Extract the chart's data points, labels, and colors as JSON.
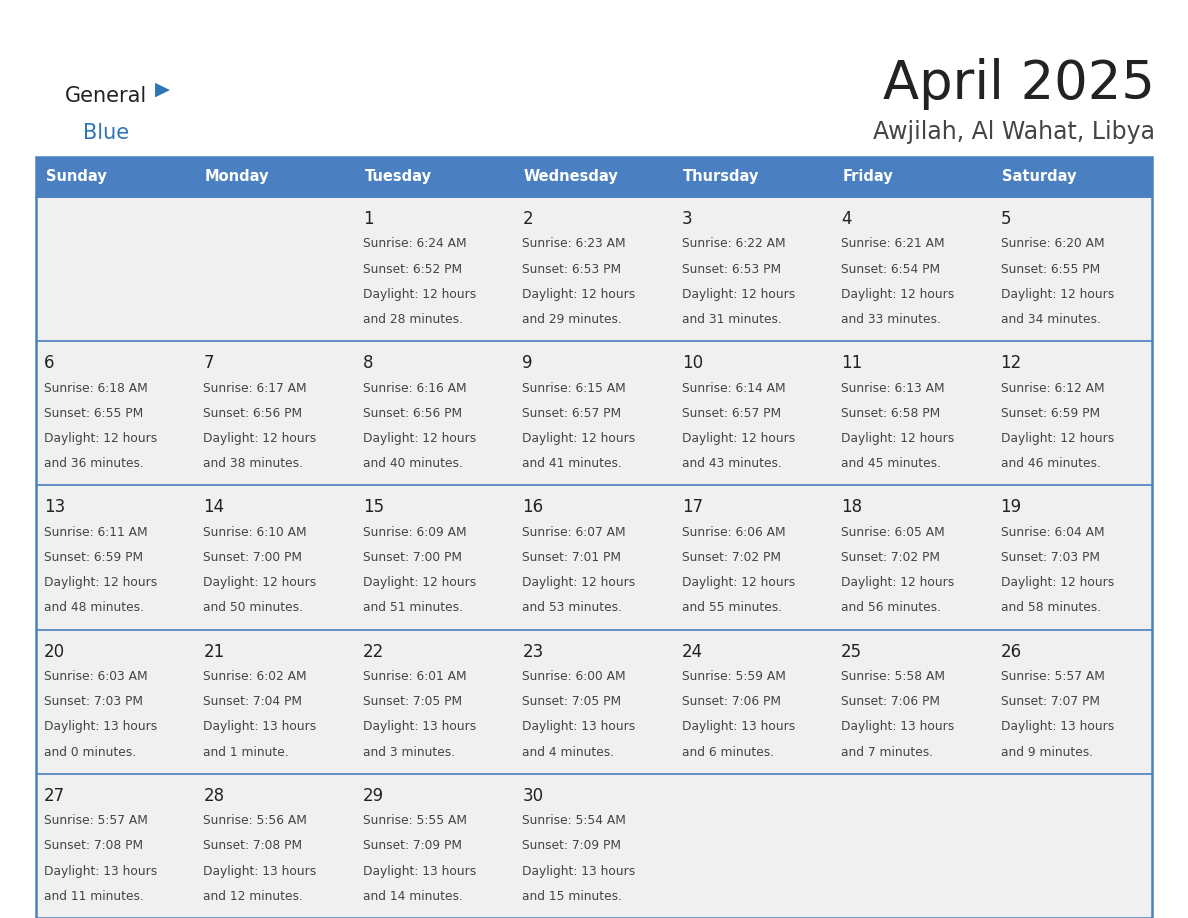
{
  "title": "April 2025",
  "subtitle": "Awjilah, Al Wahat, Libya",
  "days_of_week": [
    "Sunday",
    "Monday",
    "Tuesday",
    "Wednesday",
    "Thursday",
    "Friday",
    "Saturday"
  ],
  "header_bg": "#4A7FC1",
  "header_text": "#ffffff",
  "cell_bg": "#f0f0f0",
  "border_color": "#4A7FC1",
  "row_line_color": "#4A7FC1",
  "text_color": "#444444",
  "day_num_color": "#222222",
  "title_color": "#222222",
  "subtitle_color": "#444444",
  "logo_general_color": "#222222",
  "logo_blue_color": "#2E75B6",
  "calendar_data": [
    [
      {
        "day": "",
        "sunrise": "",
        "sunset": "",
        "daylight": ""
      },
      {
        "day": "",
        "sunrise": "",
        "sunset": "",
        "daylight": ""
      },
      {
        "day": "1",
        "sunrise": "6:24 AM",
        "sunset": "6:52 PM",
        "daylight": "12 hours and 28 minutes."
      },
      {
        "day": "2",
        "sunrise": "6:23 AM",
        "sunset": "6:53 PM",
        "daylight": "12 hours and 29 minutes."
      },
      {
        "day": "3",
        "sunrise": "6:22 AM",
        "sunset": "6:53 PM",
        "daylight": "12 hours and 31 minutes."
      },
      {
        "day": "4",
        "sunrise": "6:21 AM",
        "sunset": "6:54 PM",
        "daylight": "12 hours and 33 minutes."
      },
      {
        "day": "5",
        "sunrise": "6:20 AM",
        "sunset": "6:55 PM",
        "daylight": "12 hours and 34 minutes."
      }
    ],
    [
      {
        "day": "6",
        "sunrise": "6:18 AM",
        "sunset": "6:55 PM",
        "daylight": "12 hours and 36 minutes."
      },
      {
        "day": "7",
        "sunrise": "6:17 AM",
        "sunset": "6:56 PM",
        "daylight": "12 hours and 38 minutes."
      },
      {
        "day": "8",
        "sunrise": "6:16 AM",
        "sunset": "6:56 PM",
        "daylight": "12 hours and 40 minutes."
      },
      {
        "day": "9",
        "sunrise": "6:15 AM",
        "sunset": "6:57 PM",
        "daylight": "12 hours and 41 minutes."
      },
      {
        "day": "10",
        "sunrise": "6:14 AM",
        "sunset": "6:57 PM",
        "daylight": "12 hours and 43 minutes."
      },
      {
        "day": "11",
        "sunrise": "6:13 AM",
        "sunset": "6:58 PM",
        "daylight": "12 hours and 45 minutes."
      },
      {
        "day": "12",
        "sunrise": "6:12 AM",
        "sunset": "6:59 PM",
        "daylight": "12 hours and 46 minutes."
      }
    ],
    [
      {
        "day": "13",
        "sunrise": "6:11 AM",
        "sunset": "6:59 PM",
        "daylight": "12 hours and 48 minutes."
      },
      {
        "day": "14",
        "sunrise": "6:10 AM",
        "sunset": "7:00 PM",
        "daylight": "12 hours and 50 minutes."
      },
      {
        "day": "15",
        "sunrise": "6:09 AM",
        "sunset": "7:00 PM",
        "daylight": "12 hours and 51 minutes."
      },
      {
        "day": "16",
        "sunrise": "6:07 AM",
        "sunset": "7:01 PM",
        "daylight": "12 hours and 53 minutes."
      },
      {
        "day": "17",
        "sunrise": "6:06 AM",
        "sunset": "7:02 PM",
        "daylight": "12 hours and 55 minutes."
      },
      {
        "day": "18",
        "sunrise": "6:05 AM",
        "sunset": "7:02 PM",
        "daylight": "12 hours and 56 minutes."
      },
      {
        "day": "19",
        "sunrise": "6:04 AM",
        "sunset": "7:03 PM",
        "daylight": "12 hours and 58 minutes."
      }
    ],
    [
      {
        "day": "20",
        "sunrise": "6:03 AM",
        "sunset": "7:03 PM",
        "daylight": "13 hours and 0 minutes."
      },
      {
        "day": "21",
        "sunrise": "6:02 AM",
        "sunset": "7:04 PM",
        "daylight": "13 hours and 1 minute."
      },
      {
        "day": "22",
        "sunrise": "6:01 AM",
        "sunset": "7:05 PM",
        "daylight": "13 hours and 3 minutes."
      },
      {
        "day": "23",
        "sunrise": "6:00 AM",
        "sunset": "7:05 PM",
        "daylight": "13 hours and 4 minutes."
      },
      {
        "day": "24",
        "sunrise": "5:59 AM",
        "sunset": "7:06 PM",
        "daylight": "13 hours and 6 minutes."
      },
      {
        "day": "25",
        "sunrise": "5:58 AM",
        "sunset": "7:06 PM",
        "daylight": "13 hours and 7 minutes."
      },
      {
        "day": "26",
        "sunrise": "5:57 AM",
        "sunset": "7:07 PM",
        "daylight": "13 hours and 9 minutes."
      }
    ],
    [
      {
        "day": "27",
        "sunrise": "5:57 AM",
        "sunset": "7:08 PM",
        "daylight": "13 hours and 11 minutes."
      },
      {
        "day": "28",
        "sunrise": "5:56 AM",
        "sunset": "7:08 PM",
        "daylight": "13 hours and 12 minutes."
      },
      {
        "day": "29",
        "sunrise": "5:55 AM",
        "sunset": "7:09 PM",
        "daylight": "13 hours and 14 minutes."
      },
      {
        "day": "30",
        "sunrise": "5:54 AM",
        "sunset": "7:09 PM",
        "daylight": "13 hours and 15 minutes."
      },
      {
        "day": "",
        "sunrise": "",
        "sunset": "",
        "daylight": ""
      },
      {
        "day": "",
        "sunrise": "",
        "sunset": "",
        "daylight": ""
      },
      {
        "day": "",
        "sunrise": "",
        "sunset": "",
        "daylight": ""
      }
    ]
  ]
}
